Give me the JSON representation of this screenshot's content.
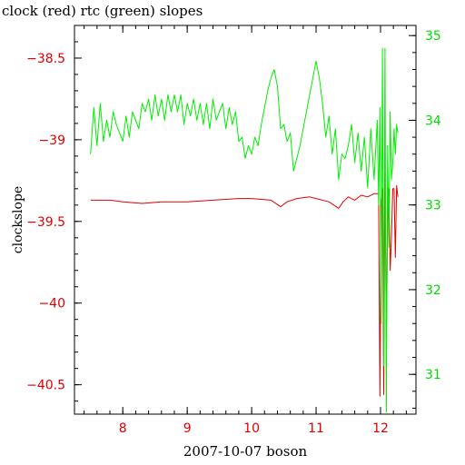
{
  "chart_data": {
    "type": "line",
    "title": "clock (red) rtc (green) slopes",
    "xlabel": "2007-10-07 boson",
    "ylabel": "clockslope",
    "xlim": [
      7.25,
      12.55
    ],
    "ylim_left": [
      -40.68,
      -38.3
    ],
    "ylim_right": [
      30.53,
      35.12
    ],
    "x_ticks": [
      8,
      9,
      10,
      11,
      12
    ],
    "left_ticks": [
      -38.5,
      -39,
      -39.5,
      -40,
      -40.5
    ],
    "right_ticks": [
      35,
      34,
      33,
      32,
      31
    ],
    "colors": {
      "clock": "#e00000",
      "rtc": "#00ee00",
      "axes": "#000000"
    },
    "series": [
      {
        "name": "clock",
        "axis": "left",
        "x": [
          7.5,
          7.8,
          8.0,
          8.3,
          8.6,
          9.0,
          9.4,
          9.8,
          10.0,
          10.3,
          10.45,
          10.55,
          10.7,
          10.9,
          11.0,
          11.2,
          11.35,
          11.42,
          11.5,
          11.6,
          11.7,
          11.8,
          11.9,
          11.97,
          11.99,
          12.01,
          12.03,
          12.05,
          12.07,
          12.09,
          12.11,
          12.13,
          12.15,
          12.17,
          12.19,
          12.21,
          12.23,
          12.25,
          12.27
        ],
        "y": [
          -39.37,
          -39.37,
          -39.38,
          -39.39,
          -39.38,
          -39.38,
          -39.37,
          -39.36,
          -39.36,
          -39.37,
          -39.41,
          -39.38,
          -39.36,
          -39.35,
          -39.36,
          -39.38,
          -39.42,
          -39.38,
          -39.35,
          -39.37,
          -39.34,
          -39.35,
          -39.33,
          -39.33,
          -40.57,
          -39.4,
          -39.3,
          -40.56,
          -39.2,
          -40.2,
          -39.5,
          -39.3,
          -39.8,
          -39.6,
          -39.3,
          -39.3,
          -39.72,
          -39.28,
          -39.35
        ]
      },
      {
        "name": "rtc",
        "axis": "right",
        "x": [
          7.5,
          7.55,
          7.6,
          7.65,
          7.7,
          7.75,
          7.8,
          7.85,
          7.9,
          7.95,
          8.0,
          8.05,
          8.1,
          8.15,
          8.2,
          8.25,
          8.3,
          8.35,
          8.4,
          8.45,
          8.5,
          8.55,
          8.6,
          8.65,
          8.7,
          8.75,
          8.8,
          8.85,
          8.9,
          8.95,
          9.0,
          9.05,
          9.1,
          9.15,
          9.2,
          9.25,
          9.3,
          9.35,
          9.4,
          9.45,
          9.5,
          9.55,
          9.6,
          9.65,
          9.7,
          9.75,
          9.8,
          9.85,
          9.9,
          9.95,
          10.0,
          10.05,
          10.1,
          10.15,
          10.2,
          10.25,
          10.3,
          10.35,
          10.4,
          10.45,
          10.5,
          10.55,
          10.6,
          10.65,
          10.7,
          10.75,
          10.8,
          10.85,
          10.9,
          10.95,
          11.0,
          11.05,
          11.1,
          11.15,
          11.2,
          11.25,
          11.3,
          11.35,
          11.4,
          11.45,
          11.5,
          11.55,
          11.6,
          11.65,
          11.7,
          11.75,
          11.8,
          11.85,
          11.9,
          11.95,
          11.97,
          11.99,
          12.01,
          12.03,
          12.05,
          12.07,
          12.09,
          12.11,
          12.13,
          12.15,
          12.17,
          12.19,
          12.21,
          12.23,
          12.25,
          12.27
        ],
        "y": [
          33.6,
          34.15,
          33.7,
          34.2,
          33.75,
          34.0,
          33.8,
          34.1,
          33.95,
          33.85,
          33.75,
          34.05,
          33.8,
          34.1,
          34.0,
          33.9,
          34.2,
          34.1,
          34.25,
          34.0,
          34.3,
          34.05,
          34.25,
          34.0,
          34.3,
          34.1,
          34.3,
          34.1,
          34.3,
          33.95,
          34.2,
          34.05,
          34.25,
          34.0,
          34.2,
          33.95,
          34.2,
          33.9,
          34.25,
          34.0,
          34.1,
          34.2,
          33.9,
          34.15,
          33.95,
          34.1,
          33.75,
          33.8,
          33.55,
          33.7,
          33.6,
          33.8,
          33.7,
          33.95,
          34.15,
          34.35,
          34.5,
          34.6,
          34.4,
          33.9,
          33.95,
          33.75,
          33.85,
          33.4,
          33.55,
          33.7,
          33.9,
          34.1,
          34.3,
          34.5,
          34.7,
          34.5,
          34.2,
          33.8,
          34.05,
          33.6,
          33.9,
          33.3,
          33.6,
          33.55,
          33.7,
          33.95,
          33.5,
          33.85,
          33.4,
          33.8,
          33.2,
          33.9,
          33.3,
          34.0,
          33.0,
          34.15,
          31.6,
          34.85,
          31.1,
          34.85,
          30.55,
          33.7,
          32.5,
          34.1,
          33.3,
          33.5,
          33.9,
          33.6,
          33.95,
          33.85
        ]
      }
    ]
  }
}
